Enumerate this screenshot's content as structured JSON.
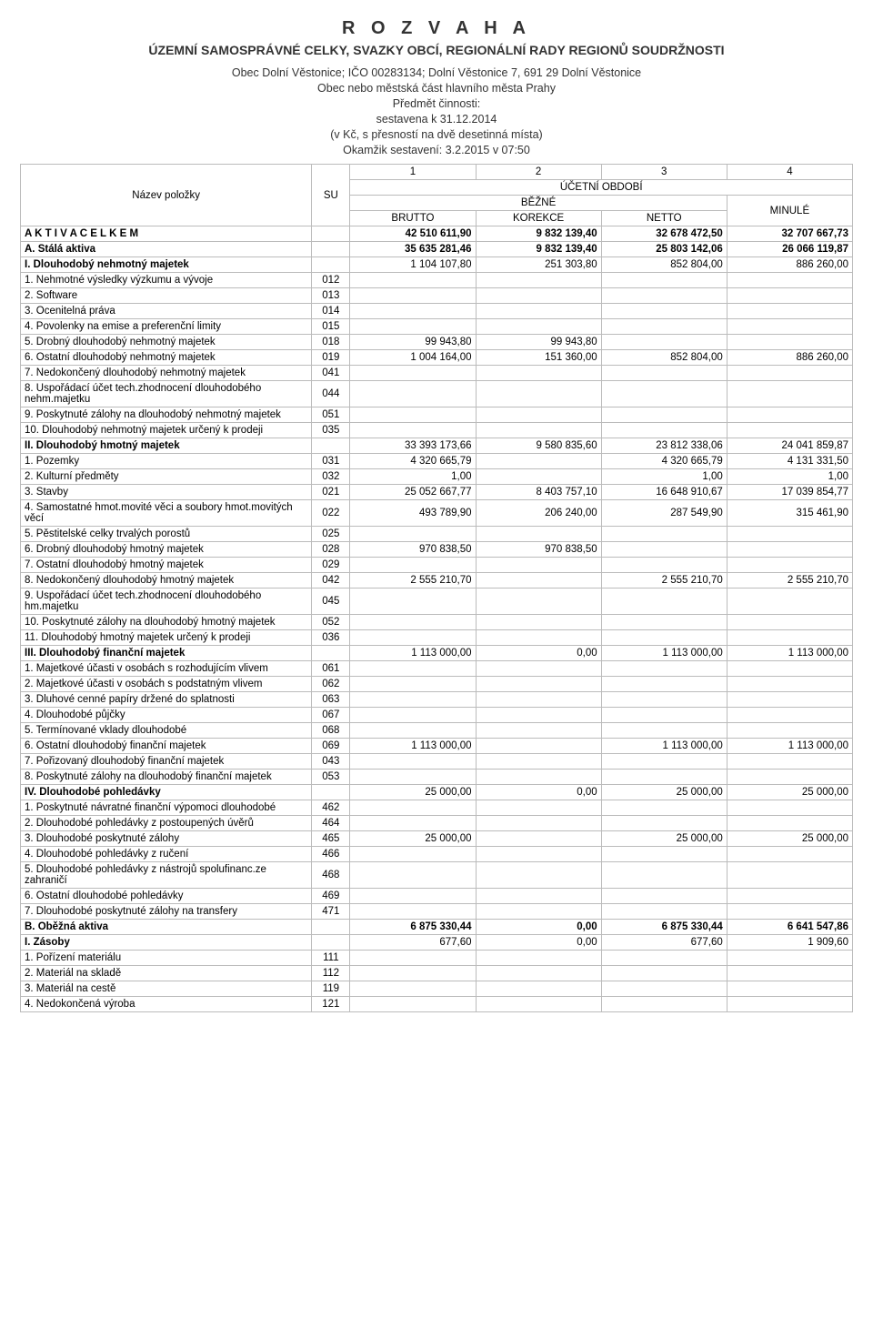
{
  "header": {
    "title_main": "R O Z V A H A",
    "title_sub": "ÚZEMNÍ SAMOSPRÁVNÉ CELKY, SVAZKY OBCÍ, REGIONÁLNÍ RADY REGIONŮ SOUDRŽNOSTI",
    "entity_line": "Obec Dolní Věstonice;  IČO 00283134;  Dolní Věstonice 7, 691 29  Dolní Věstonice",
    "type_line": "Obec nebo městská část hlavního města Prahy",
    "subject_label": "Předmět činnosti:",
    "date_line": "sestavena k 31.12.2014",
    "precision_line": "(v Kč, s přesností na dvě desetinná místa)",
    "moment_line": "Okamžik sestavení: 3.2.2015 v 07:50"
  },
  "columns": {
    "c1": "1",
    "c2": "2",
    "c3": "3",
    "c4": "4",
    "nazev": "Název položky",
    "su": "SU",
    "obdobi": "ÚČETNÍ OBDOBÍ",
    "bezne": "BĚŽNÉ",
    "minule": "MINULÉ",
    "brutto": "BRUTTO",
    "korekce": "KOREKCE",
    "netto": "NETTO"
  },
  "rows": [
    {
      "cls": "section",
      "name": "A K T I V A   C E L K E M",
      "su": "",
      "v": [
        "42 510 611,90",
        "9 832 139,40",
        "32 678 472,50",
        "32 707 667,73"
      ]
    },
    {
      "cls": "section",
      "name": "A.   Stálá aktiva",
      "su": "",
      "v": [
        "35 635 281,46",
        "9 832 139,40",
        "25 803 142,06",
        "26 066 119,87"
      ]
    },
    {
      "cls": "roman",
      "name": "I.   Dlouhodobý nehmotný majetek",
      "su": "",
      "v": [
        "1 104 107,80",
        "251 303,80",
        "852 804,00",
        "886 260,00"
      ]
    },
    {
      "cls": "",
      "name": "1. Nehmotné výsledky výzkumu a vývoje",
      "su": "012",
      "v": [
        "",
        "",
        "",
        ""
      ],
      "indent": 1
    },
    {
      "cls": "",
      "name": "2. Software",
      "su": "013",
      "v": [
        "",
        "",
        "",
        ""
      ],
      "indent": 1
    },
    {
      "cls": "",
      "name": "3. Ocenitelná práva",
      "su": "014",
      "v": [
        "",
        "",
        "",
        ""
      ],
      "indent": 1
    },
    {
      "cls": "",
      "name": "4. Povolenky na emise a preferenční limity",
      "su": "015",
      "v": [
        "",
        "",
        "",
        ""
      ],
      "indent": 1
    },
    {
      "cls": "",
      "name": "5. Drobný dlouhodobý nehmotný majetek",
      "su": "018",
      "v": [
        "99 943,80",
        "99 943,80",
        "",
        ""
      ],
      "indent": 1
    },
    {
      "cls": "",
      "name": "6. Ostatní dlouhodobý nehmotný majetek",
      "su": "019",
      "v": [
        "1 004 164,00",
        "151 360,00",
        "852 804,00",
        "886 260,00"
      ],
      "indent": 1
    },
    {
      "cls": "",
      "name": "7. Nedokončený dlouhodobý nehmotný majetek",
      "su": "041",
      "v": [
        "",
        "",
        "",
        ""
      ],
      "indent": 1
    },
    {
      "cls": "",
      "name": "8. Uspořádací účet tech.zhodnocení dlouhodobého nehm.majetku",
      "su": "044",
      "v": [
        "",
        "",
        "",
        ""
      ],
      "indent": 1
    },
    {
      "cls": "",
      "name": "9. Poskytnuté zálohy na dlouhodobý nehmotný majetek",
      "su": "051",
      "v": [
        "",
        "",
        "",
        ""
      ],
      "indent": 1
    },
    {
      "cls": "",
      "name": "10. Dlouhodobý nehmotný majetek určený k prodeji",
      "su": "035",
      "v": [
        "",
        "",
        "",
        ""
      ],
      "indent": 1
    },
    {
      "cls": "roman",
      "name": "II.  Dlouhodobý hmotný majetek",
      "su": "",
      "v": [
        "33 393 173,66",
        "9 580 835,60",
        "23 812 338,06",
        "24 041 859,87"
      ]
    },
    {
      "cls": "",
      "name": "1. Pozemky",
      "su": "031",
      "v": [
        "4 320 665,79",
        "",
        "4 320 665,79",
        "4 131 331,50"
      ],
      "indent": 1
    },
    {
      "cls": "",
      "name": "2. Kulturní předměty",
      "su": "032",
      "v": [
        "1,00",
        "",
        "1,00",
        "1,00"
      ],
      "indent": 1
    },
    {
      "cls": "",
      "name": "3. Stavby",
      "su": "021",
      "v": [
        "25 052 667,77",
        "8 403 757,10",
        "16 648 910,67",
        "17 039 854,77"
      ],
      "indent": 1
    },
    {
      "cls": "",
      "name": "4. Samostatné hmot.movité věci a soubory hmot.movitých věcí",
      "su": "022",
      "v": [
        "493 789,90",
        "206 240,00",
        "287 549,90",
        "315 461,90"
      ],
      "indent": 1
    },
    {
      "cls": "",
      "name": "5. Pěstitelské celky trvalých porostů",
      "su": "025",
      "v": [
        "",
        "",
        "",
        ""
      ],
      "indent": 1
    },
    {
      "cls": "",
      "name": "6. Drobný dlouhodobý hmotný majetek",
      "su": "028",
      "v": [
        "970 838,50",
        "970 838,50",
        "",
        ""
      ],
      "indent": 1
    },
    {
      "cls": "",
      "name": "7. Ostatní dlouhodobý hmotný majetek",
      "su": "029",
      "v": [
        "",
        "",
        "",
        ""
      ],
      "indent": 1
    },
    {
      "cls": "",
      "name": "8. Nedokončený dlouhodobý hmotný majetek",
      "su": "042",
      "v": [
        "2 555 210,70",
        "",
        "2 555 210,70",
        "2 555 210,70"
      ],
      "indent": 1
    },
    {
      "cls": "",
      "name": "9. Uspořádací účet tech.zhodnocení dlouhodobého hm.majetku",
      "su": "045",
      "v": [
        "",
        "",
        "",
        ""
      ],
      "indent": 1
    },
    {
      "cls": "",
      "name": "10. Poskytnuté zálohy na dlouhodobý hmotný majetek",
      "su": "052",
      "v": [
        "",
        "",
        "",
        ""
      ],
      "indent": 1
    },
    {
      "cls": "",
      "name": "11. Dlouhodobý hmotný majetek určený k prodeji",
      "su": "036",
      "v": [
        "",
        "",
        "",
        ""
      ],
      "indent": 1
    },
    {
      "cls": "roman",
      "name": "III. Dlouhodobý finanční majetek",
      "su": "",
      "v": [
        "1 113 000,00",
        "0,00",
        "1 113 000,00",
        "1 113 000,00"
      ]
    },
    {
      "cls": "",
      "name": "1. Majetkové účasti v osobách s rozhodujícím vlivem",
      "su": "061",
      "v": [
        "",
        "",
        "",
        ""
      ],
      "indent": 1
    },
    {
      "cls": "",
      "name": "2. Majetkové účasti v osobách s podstatným vlivem",
      "su": "062",
      "v": [
        "",
        "",
        "",
        ""
      ],
      "indent": 1
    },
    {
      "cls": "",
      "name": "3. Dluhové cenné papíry držené do splatnosti",
      "su": "063",
      "v": [
        "",
        "",
        "",
        ""
      ],
      "indent": 1
    },
    {
      "cls": "",
      "name": "4. Dlouhodobé půjčky",
      "su": "067",
      "v": [
        "",
        "",
        "",
        ""
      ],
      "indent": 1
    },
    {
      "cls": "",
      "name": "5. Termínované vklady dlouhodobé",
      "su": "068",
      "v": [
        "",
        "",
        "",
        ""
      ],
      "indent": 1
    },
    {
      "cls": "",
      "name": "6. Ostatní dlouhodobý finanční majetek",
      "su": "069",
      "v": [
        "1 113 000,00",
        "",
        "1 113 000,00",
        "1 113 000,00"
      ],
      "indent": 1
    },
    {
      "cls": "",
      "name": "7. Pořizovaný dlouhodobý finanční majetek",
      "su": "043",
      "v": [
        "",
        "",
        "",
        ""
      ],
      "indent": 1
    },
    {
      "cls": "",
      "name": "8. Poskytnuté zálohy na dlouhodobý finanční majetek",
      "su": "053",
      "v": [
        "",
        "",
        "",
        ""
      ],
      "indent": 1
    },
    {
      "cls": "roman",
      "name": "IV.  Dlouhodobé pohledávky",
      "su": "",
      "v": [
        "25 000,00",
        "0,00",
        "25 000,00",
        "25 000,00"
      ]
    },
    {
      "cls": "",
      "name": "1. Poskytnuté návratné finanční výpomoci dlouhodobé",
      "su": "462",
      "v": [
        "",
        "",
        "",
        ""
      ],
      "indent": 1
    },
    {
      "cls": "",
      "name": "2. Dlouhodobé pohledávky z postoupených úvěrů",
      "su": "464",
      "v": [
        "",
        "",
        "",
        ""
      ],
      "indent": 1
    },
    {
      "cls": "",
      "name": "3. Dlouhodobé poskytnuté zálohy",
      "su": "465",
      "v": [
        "25 000,00",
        "",
        "25 000,00",
        "25 000,00"
      ],
      "indent": 1
    },
    {
      "cls": "",
      "name": "4. Dlouhodobé pohledávky z ručení",
      "su": "466",
      "v": [
        "",
        "",
        "",
        ""
      ],
      "indent": 1
    },
    {
      "cls": "",
      "name": "5. Dlouhodobé pohledávky z nástrojů spolufinanc.ze zahraničí",
      "su": "468",
      "v": [
        "",
        "",
        "",
        ""
      ],
      "indent": 1
    },
    {
      "cls": "",
      "name": "6. Ostatní dlouhodobé pohledávky",
      "su": "469",
      "v": [
        "",
        "",
        "",
        ""
      ],
      "indent": 1
    },
    {
      "cls": "",
      "name": "7. Dlouhodobé poskytnuté zálohy na transfery",
      "su": "471",
      "v": [
        "",
        "",
        "",
        ""
      ],
      "indent": 1
    },
    {
      "cls": "section",
      "name": "B.   Oběžná aktiva",
      "su": "",
      "v": [
        "6 875 330,44",
        "0,00",
        "6 875 330,44",
        "6 641 547,86"
      ]
    },
    {
      "cls": "roman",
      "name": "I.   Zásoby",
      "su": "",
      "v": [
        "677,60",
        "0,00",
        "677,60",
        "1 909,60"
      ]
    },
    {
      "cls": "",
      "name": "1. Pořízení materiálu",
      "su": "111",
      "v": [
        "",
        "",
        "",
        ""
      ],
      "indent": 1
    },
    {
      "cls": "",
      "name": "2. Materiál na skladě",
      "su": "112",
      "v": [
        "",
        "",
        "",
        ""
      ],
      "indent": 1
    },
    {
      "cls": "",
      "name": "3. Materiál na cestě",
      "su": "119",
      "v": [
        "",
        "",
        "",
        ""
      ],
      "indent": 1
    },
    {
      "cls": "",
      "name": "4. Nedokončená výroba",
      "su": "121",
      "v": [
        "",
        "",
        "",
        ""
      ],
      "indent": 1
    }
  ]
}
